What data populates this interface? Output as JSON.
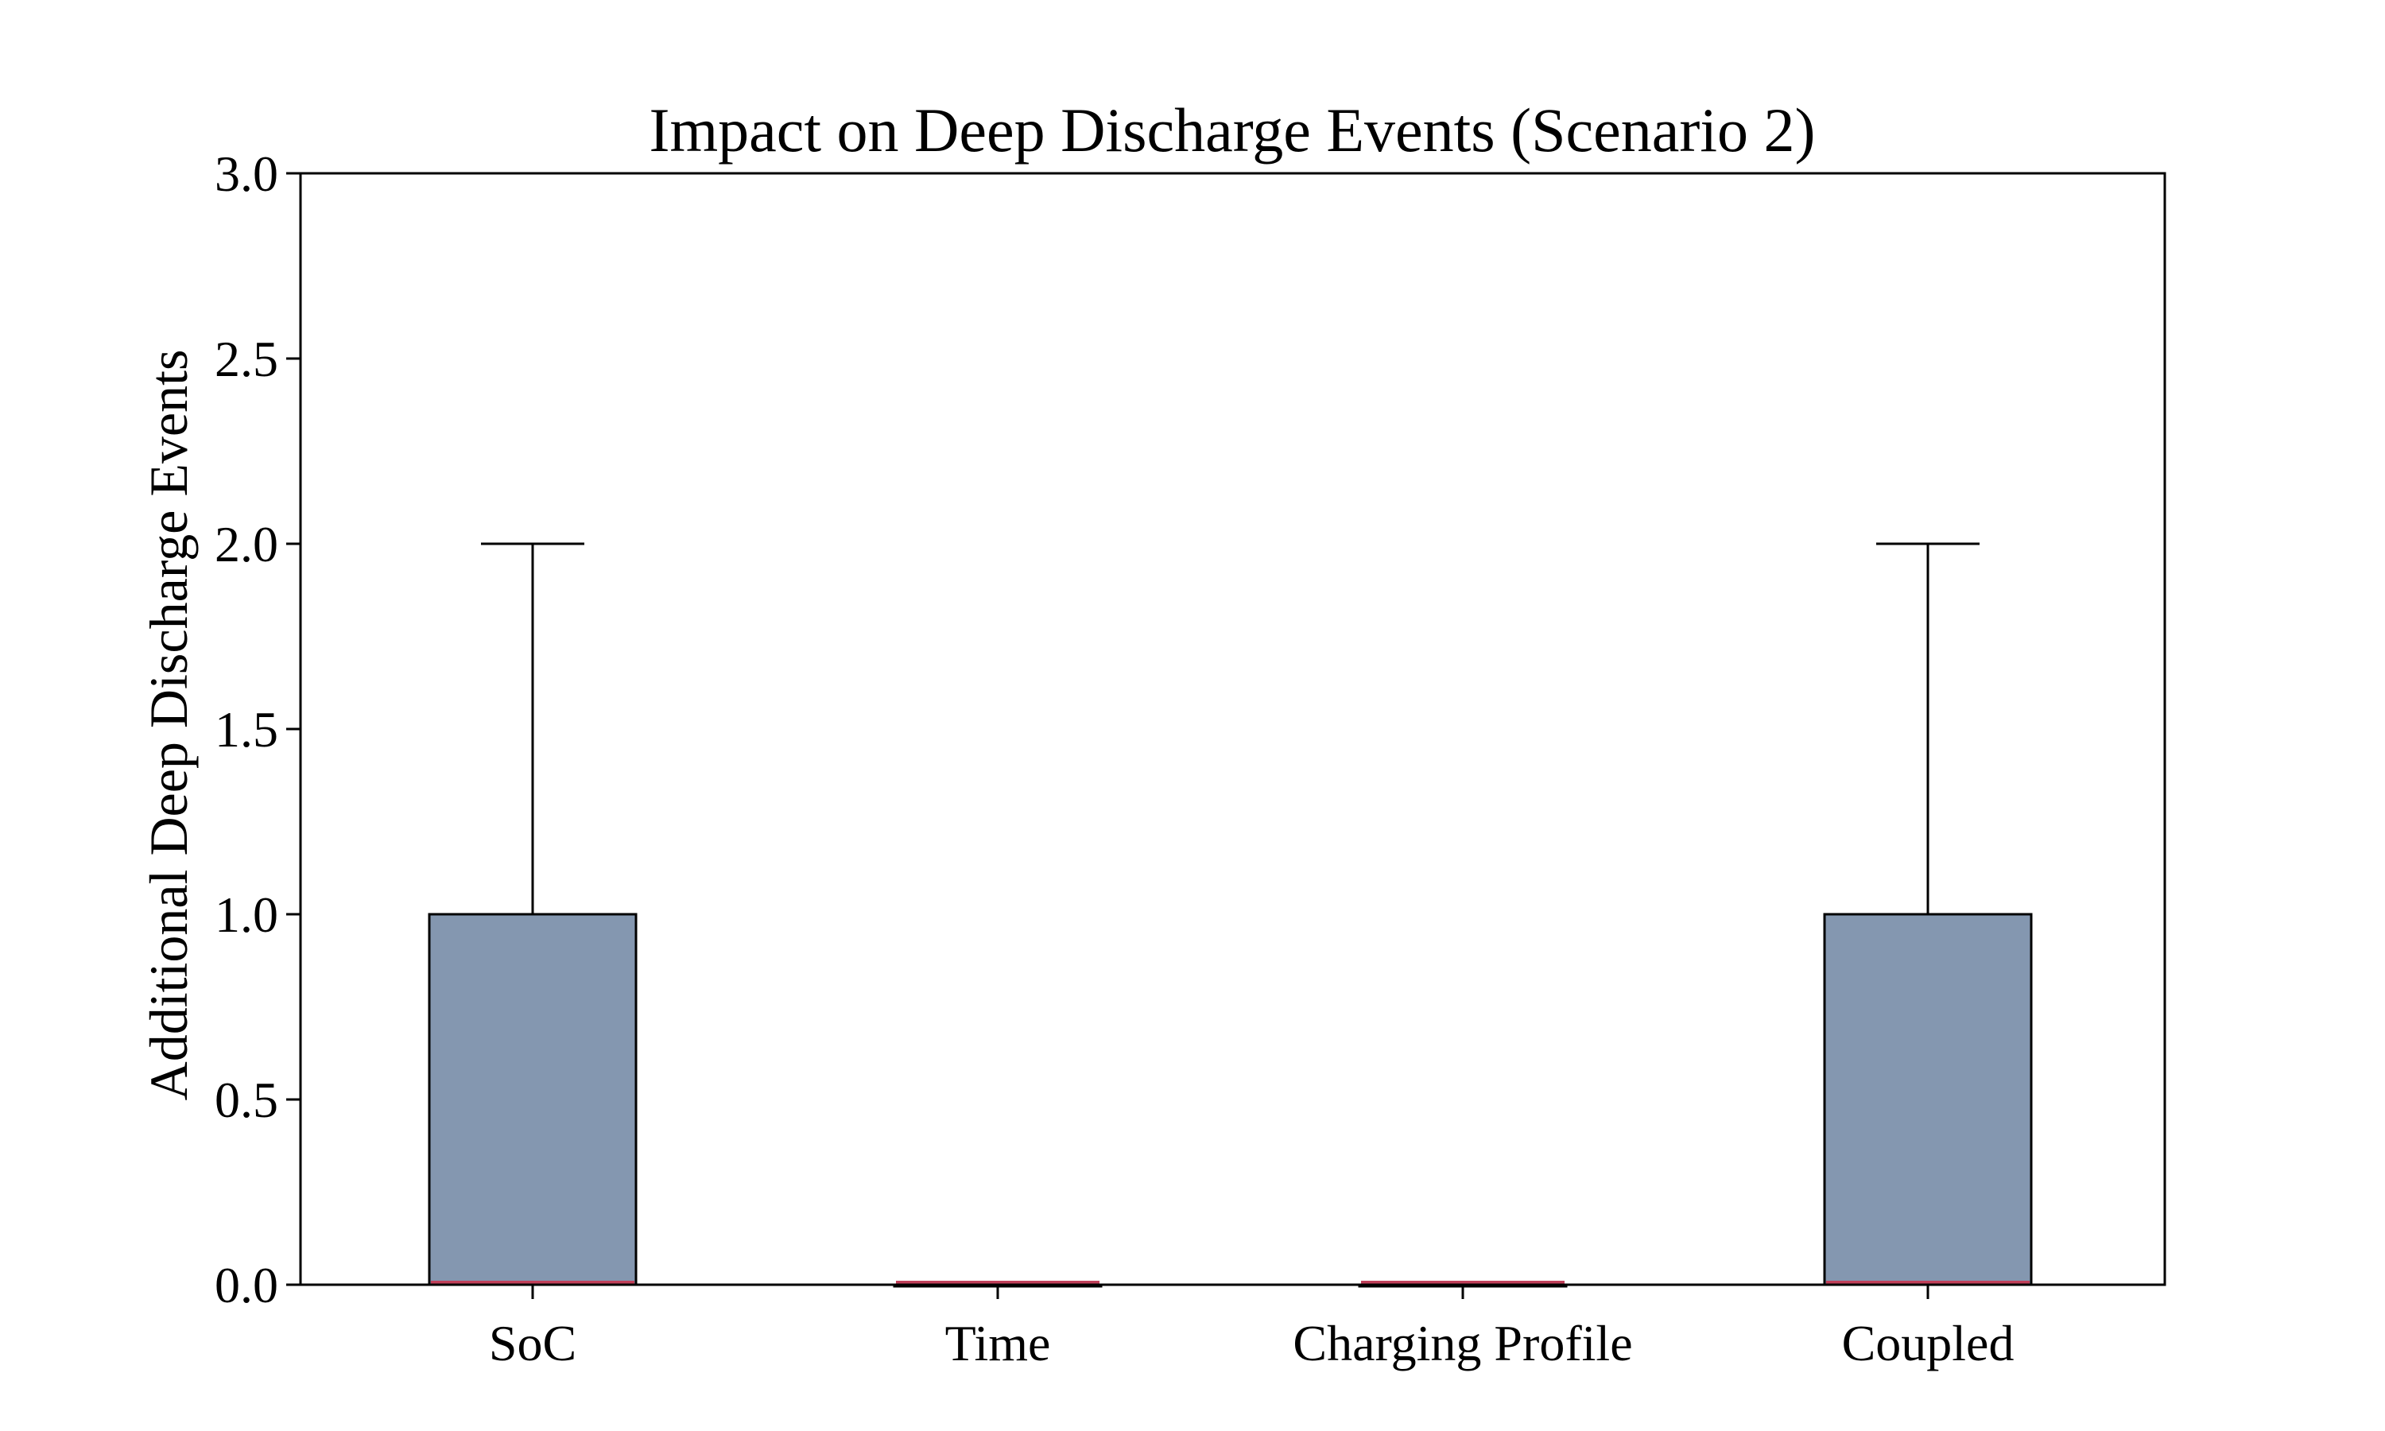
{
  "chart_data": {
    "type": "boxplot",
    "title": "Impact on Deep Discharge Events (Scenario 2)",
    "xlabel": "",
    "ylabel": "Additional Deep Discharge Events",
    "ylim": [
      0,
      3.0
    ],
    "yticks": [
      "0.0",
      "0.5",
      "1.0",
      "1.5",
      "2.0",
      "2.5",
      "3.0"
    ],
    "categories": [
      "SoC",
      "Time",
      "Charging Profile",
      "Coupled"
    ],
    "boxes": [
      {
        "category": "SoC",
        "min": 0,
        "q1": 0,
        "median": 0,
        "q3": 1.0,
        "max": 2.0
      },
      {
        "category": "Time",
        "min": 0,
        "q1": 0,
        "median": 0,
        "q3": 0,
        "max": 0
      },
      {
        "category": "Charging Profile",
        "min": 0,
        "q1": 0,
        "median": 0,
        "q3": 0,
        "max": 0
      },
      {
        "category": "Coupled",
        "min": 0,
        "q1": 0,
        "median": 0,
        "q3": 1.0,
        "max": 2.0
      }
    ],
    "box_color": "#8497b0",
    "median_color": "#c0405a",
    "grid": false,
    "legend": "none"
  }
}
